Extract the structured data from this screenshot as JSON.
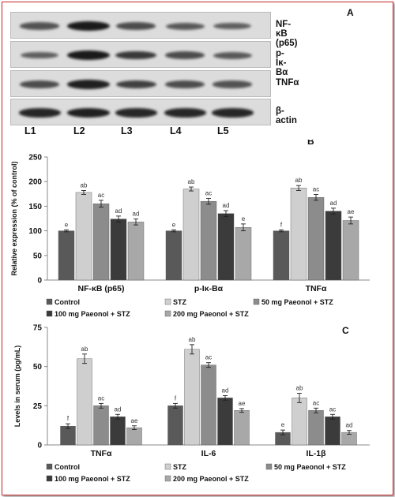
{
  "panel_a": {
    "letter": "A",
    "rows": [
      {
        "label": "NF-κB (p65)",
        "intensities": [
          0.55,
          1.0,
          0.6,
          0.5,
          0.45
        ]
      },
      {
        "label": "p-Iκ-Bα",
        "intensities": [
          0.45,
          1.0,
          0.75,
          0.6,
          0.5
        ]
      },
      {
        "label": "TNFα",
        "intensities": [
          0.6,
          0.95,
          0.7,
          0.6,
          0.55
        ]
      },
      {
        "label": "β-actin",
        "intensities": [
          0.9,
          0.95,
          0.9,
          0.9,
          0.9
        ]
      }
    ],
    "lanes": [
      "L1",
      "L2",
      "L3",
      "L4",
      "L5"
    ]
  },
  "chart_data": [
    {
      "type": "bar",
      "panel": "B",
      "ylabel": "Relative expression (% of control)",
      "ylim": [
        0,
        250
      ],
      "yticks": [
        0,
        50,
        100,
        150,
        200,
        250
      ],
      "categories": [
        "NF-κB (p65)",
        "p-Iκ-Bα",
        "TNFα"
      ],
      "series": [
        {
          "name": "Control",
          "color": "#595959",
          "values": [
            100,
            100,
            100
          ],
          "errors": [
            2,
            2,
            2
          ],
          "labels": [
            "e",
            "e",
            "f"
          ]
        },
        {
          "name": "STZ",
          "color": "#cfcfcf",
          "values": [
            178,
            185,
            187
          ],
          "errors": [
            4,
            4,
            5
          ],
          "labels": [
            "ab",
            "ab",
            "ab"
          ]
        },
        {
          "name": "50 mg Paeonol + STZ",
          "color": "#8c8c8c",
          "values": [
            155,
            160,
            168
          ],
          "errors": [
            7,
            6,
            6
          ],
          "labels": [
            "ac",
            "ac",
            "ac"
          ]
        },
        {
          "name": "100 mg Paeonol + STZ",
          "color": "#3b3b3b",
          "values": [
            124,
            135,
            140
          ],
          "errors": [
            6,
            6,
            6
          ],
          "labels": [
            "ad",
            "ad",
            "ad"
          ]
        },
        {
          "name": "200 mg Paeonol + STZ",
          "color": "#a8a8a8",
          "values": [
            118,
            107,
            121
          ],
          "errors": [
            6,
            7,
            7
          ],
          "labels": [
            "ad",
            "e",
            "ae"
          ]
        }
      ],
      "legend_position": "bottom"
    },
    {
      "type": "bar",
      "panel": "C",
      "ylabel": "Levels in serum (pg/mL)",
      "ylim": [
        0,
        75
      ],
      "yticks": [
        0,
        25,
        50,
        75
      ],
      "categories": [
        "TNFα",
        "IL-6",
        "IL-1β"
      ],
      "series": [
        {
          "name": "Control",
          "color": "#595959",
          "values": [
            12,
            25,
            8
          ],
          "errors": [
            1.5,
            1.5,
            1.5
          ],
          "labels": [
            "f",
            "f",
            "e"
          ]
        },
        {
          "name": "STZ",
          "color": "#cfcfcf",
          "values": [
            55,
            61,
            30
          ],
          "errors": [
            3,
            3,
            3
          ],
          "labels": [
            "ab",
            "ab",
            "ab"
          ]
        },
        {
          "name": "50 mg Paeonol + STZ",
          "color": "#8c8c8c",
          "values": [
            25,
            51,
            22
          ],
          "errors": [
            1.5,
            1.5,
            1.5
          ],
          "labels": [
            "ac",
            "ac",
            "ac"
          ]
        },
        {
          "name": "100 mg Paeonol + STZ",
          "color": "#3b3b3b",
          "values": [
            18,
            30,
            18
          ],
          "errors": [
            1.5,
            1.5,
            1.5
          ],
          "labels": [
            "ad",
            "ad",
            "ac"
          ]
        },
        {
          "name": "200 mg Paeonol + STZ",
          "color": "#a8a8a8",
          "values": [
            11,
            22,
            8
          ],
          "errors": [
            1.2,
            1.2,
            1.2
          ],
          "labels": [
            "ae",
            "ae",
            "ad"
          ]
        }
      ],
      "legend_position": "bottom"
    }
  ]
}
